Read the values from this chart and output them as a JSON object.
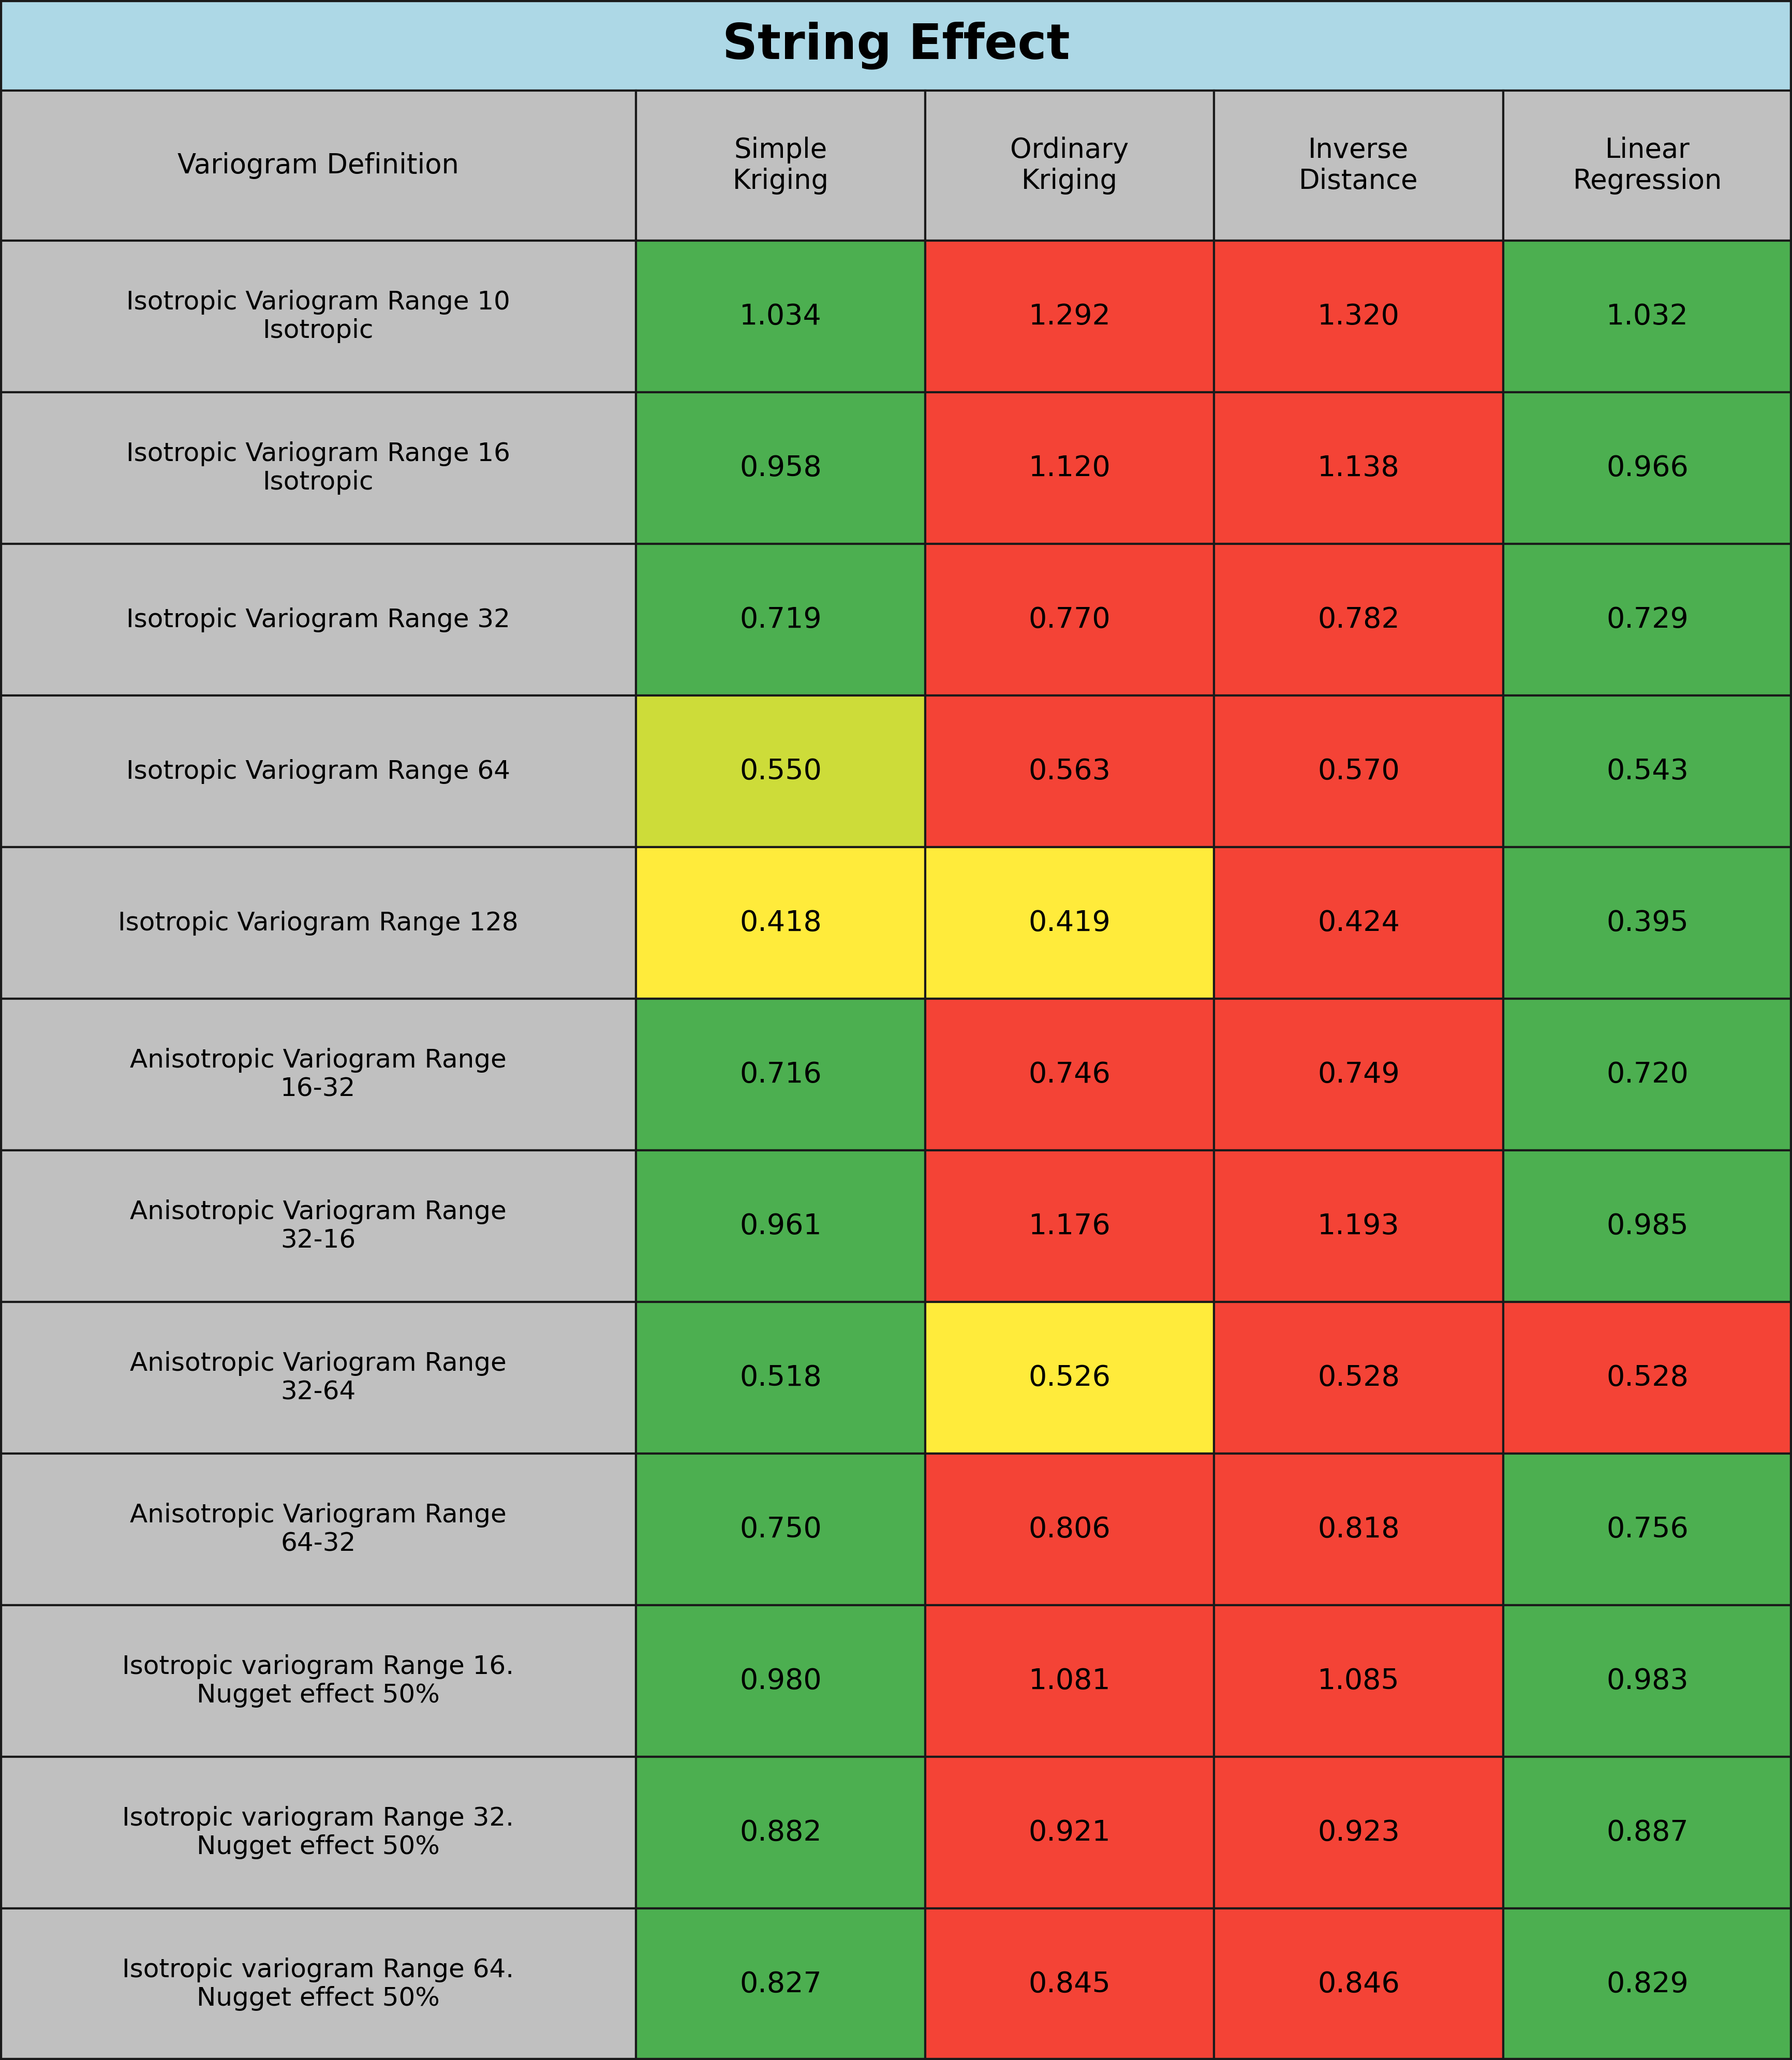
{
  "title": "String Effect",
  "title_bg_color": "#ADD8E6",
  "header_bg_color": "#C0C0C0",
  "row_label_bg_color": "#C0C0C0",
  "col_headers": [
    "Simple\nKriging",
    "Ordinary\nKriging",
    "Inverse\nDistance",
    "Linear\nRegression"
  ],
  "col_header_label": "Variogram Definition",
  "row_labels": [
    "Isotropic Variogram Range 10\nIsotropic",
    "Isotropic Variogram Range 16\nIsotropic",
    "Isotropic Variogram Range 32",
    "Isotropic Variogram Range 64",
    "Isotropic Variogram Range 128",
    "Anisotropic Variogram Range\n16-32",
    "Anisotropic Variogram Range\n32-16",
    "Anisotropic Variogram Range\n32-64",
    "Anisotropic Variogram Range\n64-32",
    "Isotropic variogram Range 16.\nNugget effect 50%",
    "Isotropic variogram Range 32.\nNugget effect 50%",
    "Isotropic variogram Range 64.\nNugget effect 50%"
  ],
  "values": [
    [
      1.034,
      1.292,
      1.32,
      1.032
    ],
    [
      0.958,
      1.12,
      1.138,
      0.966
    ],
    [
      0.719,
      0.77,
      0.782,
      0.729
    ],
    [
      0.55,
      0.563,
      0.57,
      0.543
    ],
    [
      0.418,
      0.419,
      0.424,
      0.395
    ],
    [
      0.716,
      0.746,
      0.749,
      0.72
    ],
    [
      0.961,
      1.176,
      1.193,
      0.985
    ],
    [
      0.518,
      0.526,
      0.528,
      0.528
    ],
    [
      0.75,
      0.806,
      0.818,
      0.756
    ],
    [
      0.98,
      1.081,
      1.085,
      0.983
    ],
    [
      0.882,
      0.921,
      0.923,
      0.887
    ],
    [
      0.827,
      0.845,
      0.846,
      0.829
    ]
  ],
  "cell_colors": [
    [
      "#4CAF50",
      "#F44336",
      "#F44336",
      "#4CAF50"
    ],
    [
      "#4CAF50",
      "#F44336",
      "#F44336",
      "#4CAF50"
    ],
    [
      "#4CAF50",
      "#F44336",
      "#F44336",
      "#4CAF50"
    ],
    [
      "#CDDC39",
      "#F44336",
      "#F44336",
      "#4CAF50"
    ],
    [
      "#FFEB3B",
      "#FFEB3B",
      "#F44336",
      "#4CAF50"
    ],
    [
      "#4CAF50",
      "#F44336",
      "#F44336",
      "#4CAF50"
    ],
    [
      "#4CAF50",
      "#F44336",
      "#F44336",
      "#4CAF50"
    ],
    [
      "#4CAF50",
      "#FFEB3B",
      "#F44336",
      "#F44336"
    ],
    [
      "#4CAF50",
      "#F44336",
      "#F44336",
      "#4CAF50"
    ],
    [
      "#4CAF50",
      "#F44336",
      "#F44336",
      "#4CAF50"
    ],
    [
      "#4CAF50",
      "#F44336",
      "#F44336",
      "#4CAF50"
    ],
    [
      "#4CAF50",
      "#F44336",
      "#F44336",
      "#4CAF50"
    ]
  ],
  "border_color": "#1a1a1a",
  "title_fontsize": 68,
  "header_fontsize": 38,
  "cell_fontsize": 40,
  "row_label_fontsize": 36
}
